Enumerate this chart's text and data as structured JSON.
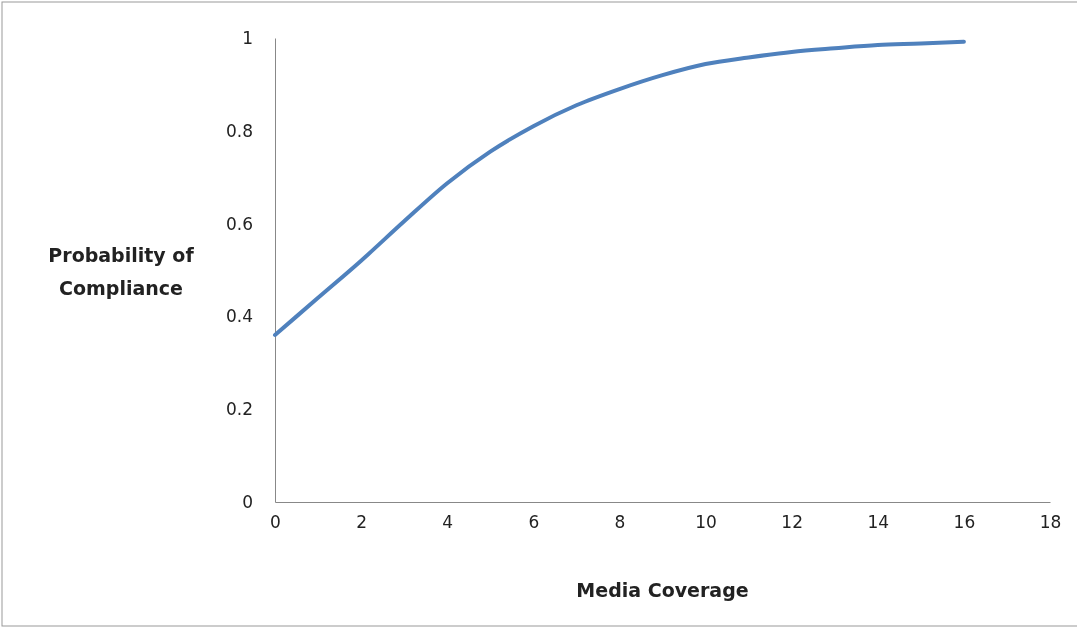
{
  "chart_data": {
    "type": "line",
    "xlabel": "Media Coverage",
    "ylabel": "Probability of Compliance",
    "x": [
      0,
      1,
      2,
      3,
      4,
      5,
      6,
      7,
      8,
      9,
      10,
      11,
      12,
      13,
      14,
      15,
      16
    ],
    "series": [
      {
        "color": "#4f81bd",
        "values": [
          0.36,
          0.44,
          0.52,
          0.605,
          0.687,
          0.755,
          0.81,
          0.855,
          0.89,
          0.92,
          0.944,
          0.958,
          0.97,
          0.978,
          0.985,
          0.988,
          0.992
        ]
      }
    ],
    "xlim": [
      0,
      18
    ],
    "xticks": [
      0,
      2,
      4,
      6,
      8,
      10,
      12,
      14,
      16,
      18
    ],
    "ylim": [
      0,
      1
    ],
    "yticks": [
      0,
      0.2,
      0.4,
      0.6,
      0.8,
      1
    ],
    "grid": false,
    "marker": "none",
    "line_style": "solid"
  }
}
